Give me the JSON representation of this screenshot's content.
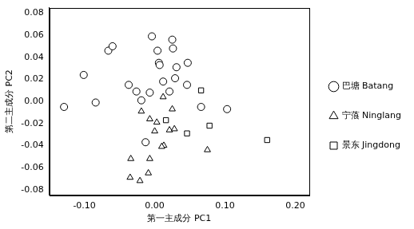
{
  "chart_data": {
    "type": "scatter",
    "x_label": "第一主成分 PC1",
    "y_label": "第二主成分 PC2",
    "xlim": [
      -0.15,
      0.22
    ],
    "xticks": [
      {
        "value": -0.1,
        "label": "-0.10"
      },
      {
        "value": 0,
        "label": "0.00"
      },
      {
        "value": 0.1,
        "label": "0.10"
      },
      {
        "value": 0.2,
        "label": "0.20"
      }
    ],
    "ylim": [
      -0.085,
      0.085
    ],
    "yticks": [
      -0.08,
      -0.06,
      -0.04,
      -0.02,
      {
        "value": 0,
        "label": "0.00"
      },
      0.02,
      0.04,
      0.06,
      0.08
    ],
    "grid": false,
    "legend": "right",
    "series": [
      {
        "name": "巴塘 Batang",
        "color": "#000000",
        "marker": "circle",
        "x": [
          -0.129,
          -0.084,
          -0.101,
          -0.066,
          -0.06,
          -0.037,
          -0.019,
          -0.013,
          -0.004,
          0.004,
          0.006,
          0.007,
          0.025,
          0.026,
          0.031,
          0.047,
          0.046,
          0.012,
          -0.007,
          -0.026,
          0.021,
          0.066,
          0.103,
          0.029
        ],
        "values": [
          -0.005,
          -0.001,
          0.024,
          0.046,
          0.05,
          0.015,
          0.001,
          -0.037,
          0.059,
          0.046,
          0.035,
          0.033,
          0.056,
          0.048,
          0.031,
          0.035,
          0.015,
          0.018,
          0.008,
          0.009,
          0.009,
          -0.005,
          -0.007,
          0.021
        ]
      },
      {
        "name": "宁蒗 Ninglang",
        "color": "#000000",
        "marker": "triangle",
        "x": [
          0.012,
          -0.019,
          -0.007,
          0.025,
          0.021,
          0.028,
          0.0,
          0.013,
          0.01,
          -0.034,
          -0.007,
          -0.009,
          -0.035,
          -0.021,
          0.075,
          0.003
        ],
        "values": [
          0.004,
          -0.009,
          -0.016,
          -0.007,
          -0.026,
          -0.025,
          -0.027,
          -0.04,
          -0.041,
          -0.052,
          -0.052,
          -0.065,
          -0.069,
          -0.072,
          -0.044,
          -0.019
        ]
      },
      {
        "name": "景东 Jingdong",
        "color": "#000000",
        "marker": "rect",
        "x": [
          0.066,
          0.016,
          0.046,
          0.078,
          0.16
        ],
        "values": [
          0.01,
          -0.017,
          -0.029,
          -0.022,
          -0.035
        ]
      }
    ]
  }
}
